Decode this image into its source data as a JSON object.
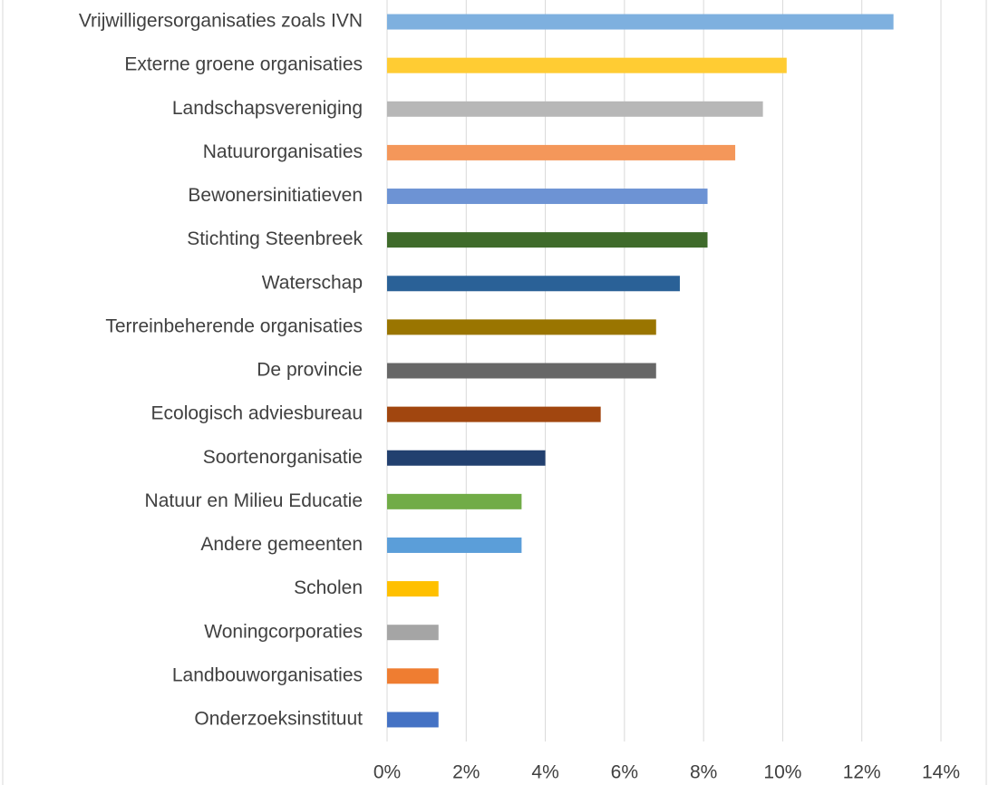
{
  "chart_data": {
    "type": "barh",
    "categories": [
      "Vrijwilligersorganisaties zoals IVN",
      "Externe groene organisaties",
      "Landschapsvereniging",
      "Natuurorganisaties",
      "Bewonersinitiatieven",
      "Stichting Steenbreek",
      "Waterschap",
      "Terreinbeherende organisaties",
      "De provincie",
      "Ecologisch adviesbureau",
      "Soortenorganisatie",
      "Natuur en Milieu Educatie",
      "Andere gemeenten",
      "Scholen",
      "Woningcorporaties",
      "Landbouworganisaties",
      "Onderzoeksinstituut"
    ],
    "values": [
      12.8,
      10.1,
      9.5,
      8.8,
      8.1,
      8.1,
      7.4,
      6.8,
      6.8,
      5.4,
      4.0,
      3.4,
      3.4,
      1.3,
      1.3,
      1.3,
      1.3
    ],
    "colors": [
      "#7eb0df",
      "#ffcc33",
      "#b7b7b7",
      "#f4975a",
      "#6d93d4",
      "#3f6b2b",
      "#2a6197",
      "#9a7500",
      "#676767",
      "#a1460f",
      "#22406f",
      "#71ac47",
      "#5b9ed9",
      "#ffc000",
      "#a5a5a5",
      "#ef7d31",
      "#4472c4"
    ],
    "xlim": [
      0,
      14
    ],
    "xticks": [
      {
        "value": 0,
        "label": "0%"
      },
      {
        "value": 2,
        "label": "2%"
      },
      {
        "value": 4,
        "label": "4%"
      },
      {
        "value": 6,
        "label": "6%"
      },
      {
        "value": 8,
        "label": "8%"
      },
      {
        "value": 10,
        "label": "10%"
      },
      {
        "value": 12,
        "label": "12%"
      },
      {
        "value": 14,
        "label": "14%"
      }
    ],
    "grid": true
  }
}
